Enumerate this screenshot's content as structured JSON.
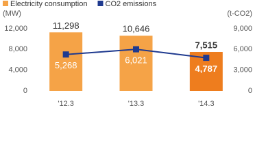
{
  "chart_data": {
    "type": "bar",
    "categories": [
      "'12.3",
      "'13.3",
      "'14.3"
    ],
    "y_label": "(MW)",
    "y2_label": "(t-CO2)",
    "ylim": [
      0,
      12000
    ],
    "yticks": [
      0,
      {
        "value": 4000,
        "label": "4,000"
      },
      {
        "value": 8000,
        "label": "8,000"
      },
      {
        "value": 12000,
        "label": "12,000"
      }
    ],
    "y2lim": [
      0,
      9000
    ],
    "y2ticks": [
      0,
      {
        "value": 3000,
        "label": "3,000"
      },
      {
        "value": 6000,
        "label": "6,000"
      },
      {
        "value": 9000,
        "label": "9,000"
      }
    ],
    "series": [
      {
        "name": "Electricity consumption",
        "kind": "bar",
        "color": "#f5a347",
        "colors": [
          "#f5a347",
          "#f5a347",
          "#ee7d1e"
        ],
        "bold_labels": [
          false,
          false,
          true
        ],
        "values": [
          11298,
          10646,
          7515
        ],
        "value_labels": [
          "11,298",
          "10,646",
          "7,515"
        ]
      },
      {
        "name": "CO2 emissions",
        "kind": "line",
        "axis": "y2",
        "color": "#1f3a8f",
        "bold_labels": [
          false,
          false,
          true
        ],
        "values": [
          5268,
          6021,
          4787
        ],
        "value_labels": [
          "5,268",
          "6,021",
          "4,787"
        ]
      }
    ]
  }
}
